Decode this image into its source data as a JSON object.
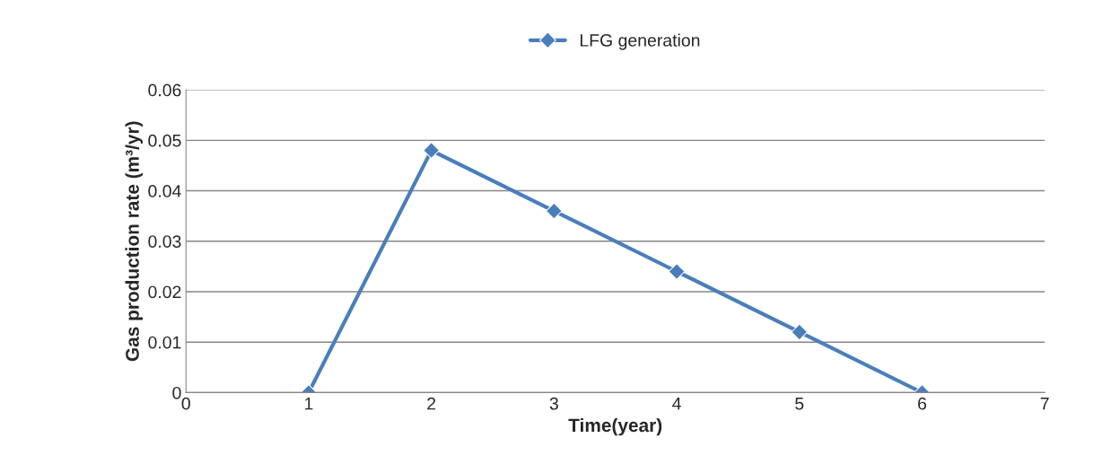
{
  "chart_data": {
    "type": "line",
    "xlabel": "Time(year)",
    "ylabel": "Gas production rate (m³/yr)",
    "x": [
      1,
      2,
      3,
      4,
      5,
      6
    ],
    "series": [
      {
        "name": "LFG generation",
        "color": "#4a7ebb",
        "values": [
          0,
          0.048,
          0.036,
          0.024,
          0.012,
          0
        ]
      }
    ],
    "xlim": [
      0,
      7
    ],
    "xticks": [
      0,
      1,
      2,
      3,
      4,
      5,
      6,
      7
    ],
    "ylim": [
      0,
      0.06
    ],
    "yticks": [
      0,
      {
        "value": 0.01,
        "label": "0.01"
      },
      {
        "value": 0.02,
        "label": "0.02"
      },
      {
        "value": 0.03,
        "label": "0.03"
      },
      {
        "value": 0.04,
        "label": "0.04"
      },
      {
        "value": 0.05,
        "label": "0.05"
      },
      {
        "value": 0.06,
        "label": "0.06"
      }
    ],
    "grid": "y",
    "legend": "top",
    "marker": "diamond",
    "line_style": "solid"
  }
}
